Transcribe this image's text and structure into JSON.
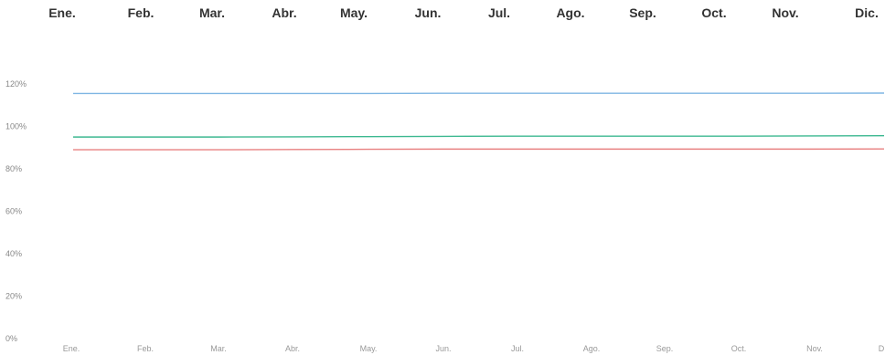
{
  "chart_data": {
    "type": "line",
    "title": "",
    "xlabel": "",
    "ylabel": "",
    "categories": [
      "Ene.",
      "Feb.",
      "Mar.",
      "Abr.",
      "May.",
      "Jun.",
      "Jul.",
      "Ago.",
      "Sep.",
      "Oct.",
      "Nov.",
      "Dic."
    ],
    "top_month_labels": [
      "Ene.",
      "Feb.",
      "Mar.",
      "Abr.",
      "May.",
      "Jun.",
      "Jul.",
      "Ago.",
      "Sep.",
      "Oct.",
      "Nov.",
      "Dic."
    ],
    "bottom_month_labels": [
      "Ene.",
      "Feb.",
      "Mar.",
      "Abr.",
      "May.",
      "Jun.",
      "Jul.",
      "Ago.",
      "Sep.",
      "Oct.",
      "Nov.",
      "D"
    ],
    "y_ticks": [
      "0%",
      "20%",
      "40%",
      "60%",
      "80%",
      "100%",
      "120%"
    ],
    "y_tick_values": [
      0,
      20,
      40,
      60,
      80,
      100,
      120
    ],
    "ylim": [
      0,
      120
    ],
    "grid": false,
    "series": [
      {
        "color": "#7fb6e3",
        "values": [
          115.5,
          115.5,
          115.5,
          115.5,
          115.5,
          115.6,
          115.6,
          115.6,
          115.6,
          115.6,
          115.6,
          115.7
        ]
      },
      {
        "color": "#3cb890",
        "values": [
          95,
          95,
          95,
          95.1,
          95.2,
          95.3,
          95.4,
          95.4,
          95.4,
          95.4,
          95.5,
          95.6
        ]
      },
      {
        "color": "#e88080",
        "values": [
          89,
          89,
          89,
          89.1,
          89.2,
          89.3,
          89.3,
          89.3,
          89.3,
          89.3,
          89.3,
          89.4
        ]
      }
    ]
  }
}
